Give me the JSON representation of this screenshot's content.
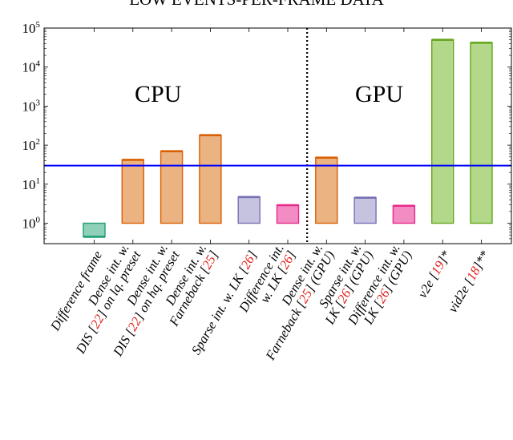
{
  "chart_data": {
    "type": "bar",
    "title": "LOW EVENTS-PER-FRAME DATA",
    "yscale": "log",
    "ylim": [
      0.3,
      100000
    ],
    "ytick_values": [
      1,
      10,
      100,
      1000,
      10000,
      100000
    ],
    "ytick_labels": [
      {
        "base": "10",
        "exp": "0"
      },
      {
        "base": "10",
        "exp": "1"
      },
      {
        "base": "10",
        "exp": "2"
      },
      {
        "base": "10",
        "exp": "3"
      },
      {
        "base": "10",
        "exp": "4"
      },
      {
        "base": "10",
        "exp": "5"
      }
    ],
    "grid": false,
    "reference_line": {
      "value": 30,
      "color": "#0000ff"
    },
    "separator_after_index": 5,
    "groups": [
      {
        "label": "CPU",
        "position": "left"
      },
      {
        "label": "GPU",
        "position": "right"
      }
    ],
    "categories": [
      {
        "name": "Difference frame",
        "lines": [
          [
            {
              "t": "Difference frame"
            }
          ]
        ],
        "value": 0.45,
        "base": 1.0,
        "fill": "#8fd1b8",
        "stroke": "#1f9e73"
      },
      {
        "name": "Dense int. w. DIS [22] on lq. preset",
        "lines": [
          [
            {
              "t": "Dense int. w."
            }
          ],
          [
            {
              "t": "DIS ["
            },
            {
              "t": "22",
              "ref": true
            },
            {
              "t": "] on lq. preset"
            }
          ]
        ],
        "value": 42,
        "base": 1.0,
        "fill": "#ebb282",
        "stroke": "#d95f02"
      },
      {
        "name": "Dense int. w. DIS [22] on hq. preset",
        "lines": [
          [
            {
              "t": "Dense int. w."
            }
          ],
          [
            {
              "t": "DIS ["
            },
            {
              "t": "22",
              "ref": true
            },
            {
              "t": "] on hq. preset"
            }
          ]
        ],
        "value": 70,
        "base": 1.0,
        "fill": "#ebb282",
        "stroke": "#d95f02"
      },
      {
        "name": "Dense int. w. Farneback [25]",
        "lines": [
          [
            {
              "t": "Dense int. w."
            }
          ],
          [
            {
              "t": "Farneback ["
            },
            {
              "t": "25",
              "ref": true
            },
            {
              "t": "]"
            }
          ]
        ],
        "value": 180,
        "base": 1.0,
        "fill": "#ebb282",
        "stroke": "#d95f02"
      },
      {
        "name": "Sparse int. w. LK [26]",
        "lines": [
          [
            {
              "t": "Sparse int. w. LK ["
            },
            {
              "t": "26",
              "ref": true
            },
            {
              "t": "]"
            }
          ]
        ],
        "value": 4.7,
        "base": 1.0,
        "fill": "#c6c3e1",
        "stroke": "#7570b3"
      },
      {
        "name": "Difference int. w. LK [26]",
        "lines": [
          [
            {
              "t": "Difference int."
            }
          ],
          [
            {
              "t": "w. LK ["
            },
            {
              "t": "26",
              "ref": true
            },
            {
              "t": "]"
            }
          ]
        ],
        "value": 2.9,
        "base": 1.0,
        "fill": "#f28cc3",
        "stroke": "#e7298a"
      },
      {
        "name": "Dense int. w. Farneback [25] (GPU)",
        "lines": [
          [
            {
              "t": "Dense int. w."
            }
          ],
          [
            {
              "t": "Farneback ["
            },
            {
              "t": "25",
              "ref": true
            },
            {
              "t": "] (GPU)"
            }
          ]
        ],
        "value": 48,
        "base": 1.0,
        "fill": "#ebb282",
        "stroke": "#d95f02"
      },
      {
        "name": "Sparse int. w. LK [26] (GPU)",
        "lines": [
          [
            {
              "t": "Sparse int. w."
            }
          ],
          [
            {
              "t": "LK ["
            },
            {
              "t": "26",
              "ref": true
            },
            {
              "t": "] (GPU)"
            }
          ]
        ],
        "value": 4.5,
        "base": 1.0,
        "fill": "#c6c3e1",
        "stroke": "#7570b3"
      },
      {
        "name": "Difference int. w. LK [26] (GPU)",
        "lines": [
          [
            {
              "t": "Difference int. w."
            }
          ],
          [
            {
              "t": "LK ["
            },
            {
              "t": "26",
              "ref": true
            },
            {
              "t": "] (GPU)"
            }
          ]
        ],
        "value": 2.8,
        "base": 1.0,
        "fill": "#f28cc3",
        "stroke": "#e7298a"
      },
      {
        "name": "v2e [19]*",
        "lines": [
          [
            {
              "t": "v2e ["
            },
            {
              "t": "19",
              "ref": true
            },
            {
              "t": "]*"
            }
          ]
        ],
        "value": 50000,
        "base": 1.0,
        "fill": "#b3d88a",
        "stroke": "#66a61e"
      },
      {
        "name": "vid2e [18]**",
        "lines": [
          [
            {
              "t": "vid2e ["
            },
            {
              "t": "18",
              "ref": true
            },
            {
              "t": "]**"
            }
          ]
        ],
        "value": 42000,
        "base": 1.0,
        "fill": "#b3d88a",
        "stroke": "#66a61e"
      }
    ]
  }
}
